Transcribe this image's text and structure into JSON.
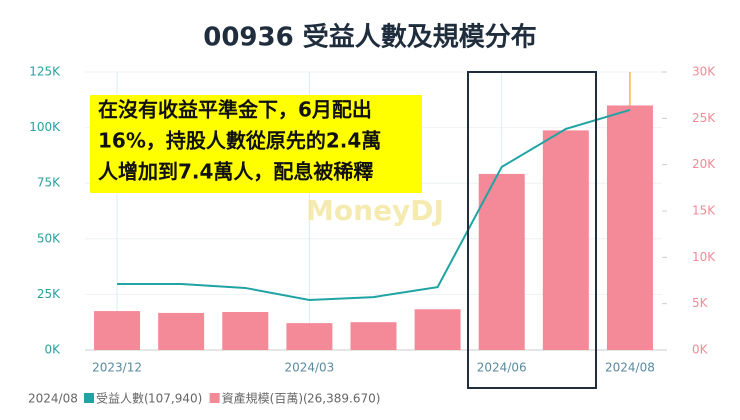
{
  "chart_data": {
    "type": "bar-line",
    "title": "00936 受益人數及規模分布",
    "categories": [
      "2023/12",
      null,
      null,
      "2024/03",
      null,
      null,
      "2024/06",
      null,
      "2024/08"
    ],
    "series": [
      {
        "name": "受益人數",
        "type": "line",
        "color": "#1fa3a3",
        "axis": "y",
        "values": [
          29700,
          29700,
          27900,
          22500,
          23800,
          28300,
          82300,
          99400,
          107940
        ]
      },
      {
        "name": "資產規模(百萬)",
        "type": "bar",
        "color": "#f48a97",
        "axis": "y2",
        "values": [
          4200,
          4000,
          4100,
          2900,
          3000,
          4400,
          19000,
          23700,
          26389.67
        ]
      }
    ],
    "ylim": [
      0,
      125000
    ],
    "yticks": [
      {
        "value": 0,
        "label": "0K"
      },
      {
        "value": 25000,
        "label": "25K"
      },
      {
        "value": 50000,
        "label": "50K"
      },
      {
        "value": 75000,
        "label": "75K"
      },
      {
        "value": 100000,
        "label": "100K"
      },
      {
        "value": 125000,
        "label": "125K"
      }
    ],
    "y2lim": [
      0,
      30000
    ],
    "y2ticks": [
      {
        "value": 0,
        "label": "0K"
      },
      {
        "value": 5000,
        "label": "5K"
      },
      {
        "value": 10000,
        "label": "10K"
      },
      {
        "value": 15000,
        "label": "15K"
      },
      {
        "value": 20000,
        "label": "20K"
      },
      {
        "value": 25000,
        "label": "25K"
      },
      {
        "value": 30000,
        "label": "30K"
      }
    ],
    "annotation": [
      "在沒有收益平準金下，6月配出",
      "16%，持股人數從原先的2.4萬",
      "人增加到7.4萬人，配息被稀釋"
    ],
    "watermark": "MoneyDJ",
    "tooltip": {
      "label": "2024/08",
      "values": [
        "107,940",
        "26,389.670"
      ]
    }
  }
}
